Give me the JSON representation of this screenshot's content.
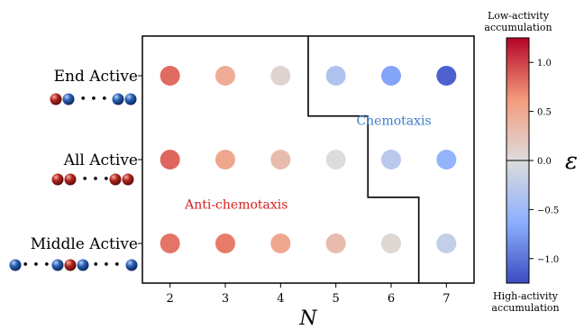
{
  "chart_data": {
    "type": "scatter",
    "xlabel": "N",
    "x_ticks": [
      2,
      3,
      4,
      5,
      6,
      7
    ],
    "xlim": [
      1.5,
      7.5
    ],
    "rows": [
      {
        "label": "End Active",
        "mid": "• • •"
      },
      {
        "label": "All Active",
        "mid": "• • •"
      },
      {
        "label": "Middle Active",
        "mid": "• • •"
      }
    ],
    "values": [
      [
        0.82,
        0.45,
        0.08,
        -0.35,
        -0.7,
        -1.12
      ],
      [
        0.84,
        0.5,
        0.3,
        0.0,
        -0.28,
        -0.58
      ],
      [
        0.78,
        0.75,
        0.5,
        0.3,
        0.05,
        -0.2
      ]
    ],
    "boundary": [
      [
        4.5,
        3.35
      ],
      [
        4.5,
        2.52
      ],
      [
        5.58,
        2.52
      ],
      [
        5.58,
        1.55
      ],
      [
        6.5,
        1.55
      ],
      [
        6.5,
        0.5
      ]
    ],
    "region_labels": [
      {
        "text": "Chemotaxis",
        "color": "#3a7cc9",
        "x": 6.05,
        "y": 2.47
      },
      {
        "text": "Anti-chemotaxis",
        "color": "#d42020",
        "x": 3.2,
        "y": 1.47
      }
    ],
    "colorbar": {
      "label": "ε",
      "vmin": -1.25,
      "vmax": 1.25,
      "ticks": [
        1.0,
        0.5,
        0.0,
        -0.5,
        -1.0
      ],
      "tick_labels": [
        "1.0",
        "0.5",
        "0.0",
        "−0.5",
        "−1.0"
      ],
      "top_caption": [
        "Low-activity",
        "accumulation"
      ],
      "bottom_caption": [
        "High-activity",
        "accumulation"
      ],
      "colormap": "coolwarm"
    },
    "grid": false
  },
  "colors": {
    "active_bead": "#a51c1c",
    "passive_bead": "#1e4f9c"
  }
}
